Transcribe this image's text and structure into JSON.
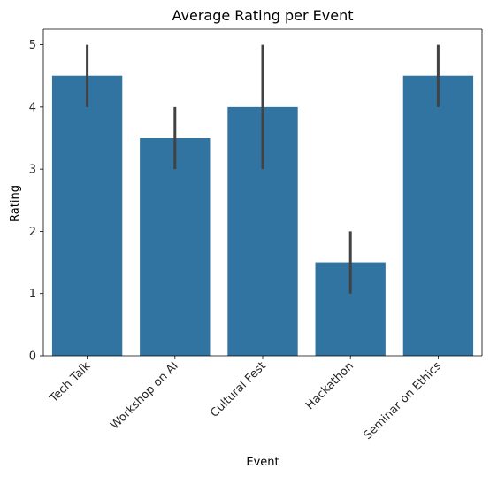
{
  "chart_data": {
    "type": "bar",
    "title": "Average Rating per Event",
    "xlabel": "Event",
    "ylabel": "Rating",
    "categories": [
      "Tech Talk",
      "Workshop on AI",
      "Cultural Fest",
      "Hackathon",
      "Seminar on Ethics"
    ],
    "values": [
      4.5,
      3.5,
      4.0,
      1.5,
      4.5
    ],
    "error_low": [
      4.0,
      3.0,
      3.0,
      1.0,
      4.0
    ],
    "error_high": [
      5.0,
      4.0,
      5.0,
      2.0,
      5.0
    ],
    "ylim": [
      0,
      5.25
    ],
    "yticks": [
      0,
      1,
      2,
      3,
      4,
      5
    ],
    "grid": false,
    "legend": "none",
    "bar_color": "#3274a1",
    "error_color": "#424242"
  }
}
